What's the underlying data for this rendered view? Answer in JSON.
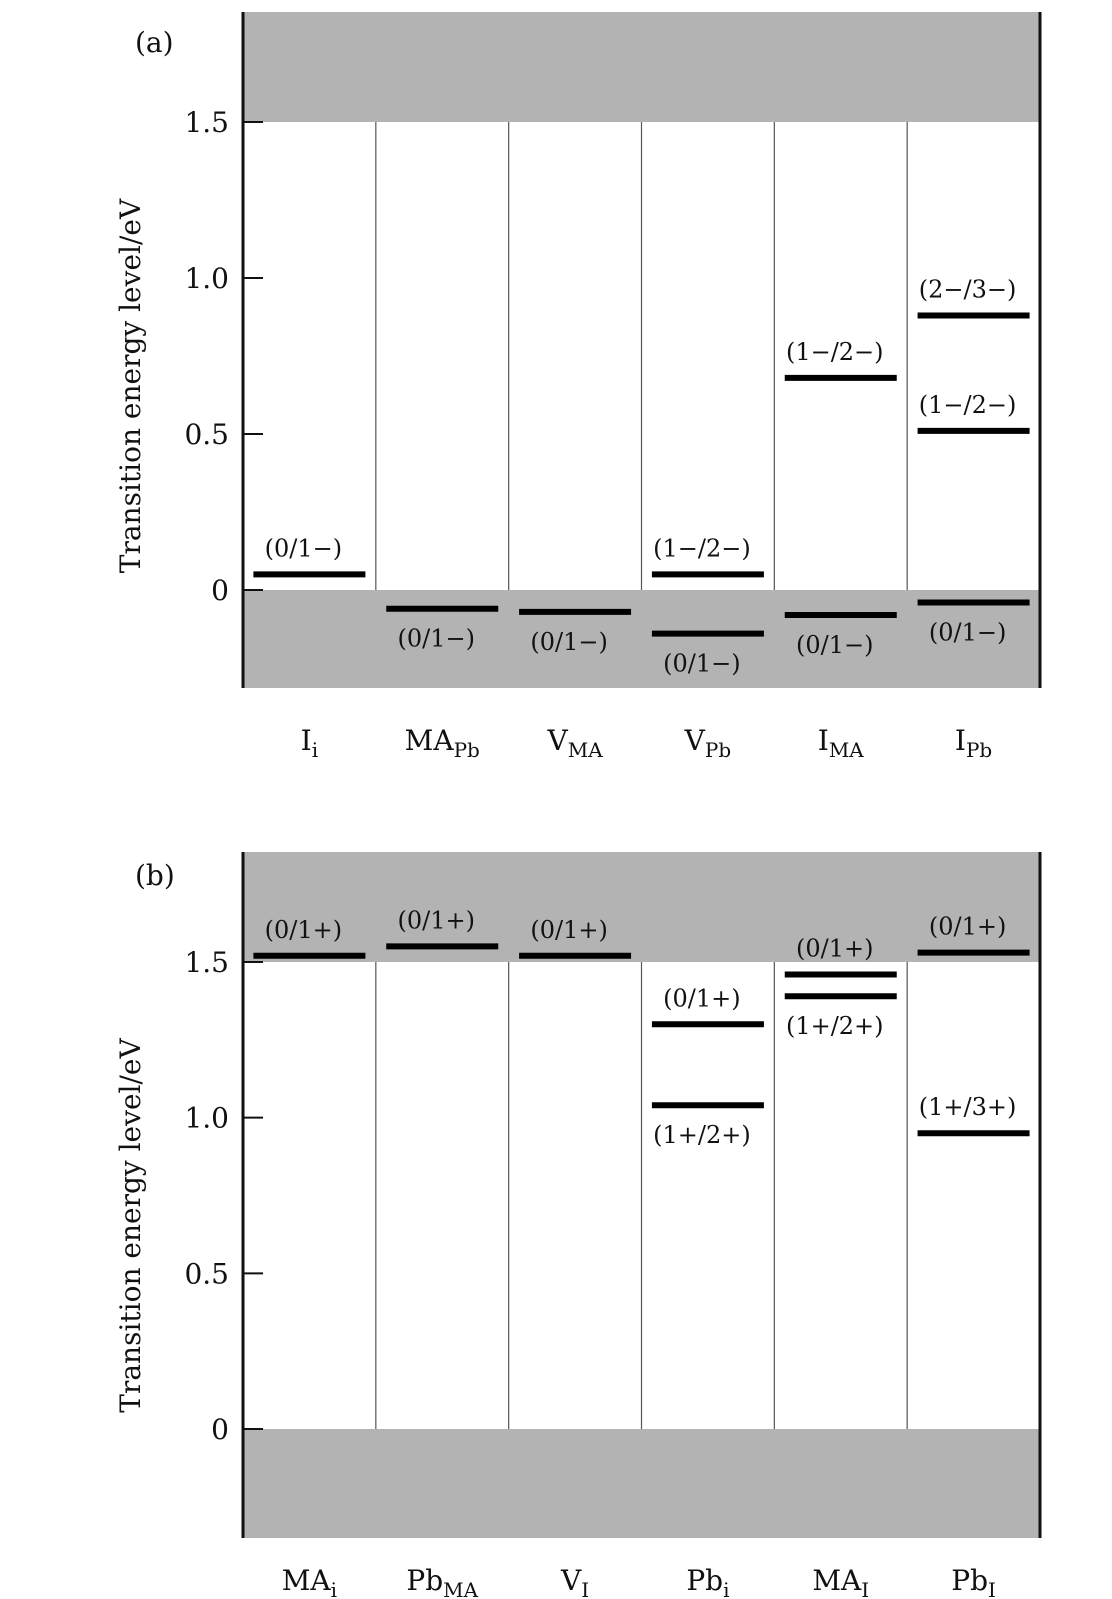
{
  "chart_data": [
    {
      "type": "energy-level-diagram",
      "panel_label": "(a)",
      "ylabel": "Transition energy level/eV",
      "yticks": [
        "0",
        "0.5",
        "1.0",
        "1.5"
      ],
      "ylim": [
        -0.36,
        1.85
      ],
      "bands": {
        "valence_top": 0,
        "conduction_bottom": 1.5,
        "color": "#b3b3b3"
      },
      "categories": [
        {
          "base": "I",
          "sub": "i"
        },
        {
          "base": "MA",
          "sub": "Pb"
        },
        {
          "base": "V",
          "sub": "MA"
        },
        {
          "base": "V",
          "sub": "Pb"
        },
        {
          "base": "I",
          "sub": "MA"
        },
        {
          "base": "I",
          "sub": "Pb"
        }
      ],
      "levels": [
        {
          "category": 0,
          "energy": 0.05,
          "label": "(0/1−)",
          "label_pos": "above"
        },
        {
          "category": 1,
          "energy": -0.06,
          "label": "(0/1−)",
          "label_pos": "below"
        },
        {
          "category": 2,
          "energy": -0.07,
          "label": "(0/1−)",
          "label_pos": "below"
        },
        {
          "category": 3,
          "energy": 0.05,
          "label": "(1−/2−)",
          "label_pos": "above"
        },
        {
          "category": 3,
          "energy": -0.14,
          "label": "(0/1−)",
          "label_pos": "below"
        },
        {
          "category": 4,
          "energy": 0.68,
          "label": "(1−/2−)",
          "label_pos": "above"
        },
        {
          "category": 4,
          "energy": -0.08,
          "label": "(0/1−)",
          "label_pos": "below"
        },
        {
          "category": 5,
          "energy": 0.88,
          "label": "(2−/3−)",
          "label_pos": "above"
        },
        {
          "category": 5,
          "energy": 0.51,
          "label": "(1−/2−)",
          "label_pos": "above"
        },
        {
          "category": 5,
          "energy": -0.04,
          "label": "(0/1−)",
          "label_pos": "below"
        }
      ]
    },
    {
      "type": "energy-level-diagram",
      "panel_label": "(b)",
      "ylabel": "Transition energy level/eV",
      "yticks": [
        "0",
        "0.5",
        "1.0",
        "1.5"
      ],
      "ylim": [
        -0.36,
        1.85
      ],
      "bands": {
        "valence_top": 0,
        "conduction_bottom": 1.5,
        "color": "#b3b3b3"
      },
      "categories": [
        {
          "base": "MA",
          "sub": "i"
        },
        {
          "base": "Pb",
          "sub": "MA"
        },
        {
          "base": "V",
          "sub": "I"
        },
        {
          "base": "Pb",
          "sub": "i"
        },
        {
          "base": "MA",
          "sub": "I"
        },
        {
          "base": "Pb",
          "sub": "I"
        }
      ],
      "levels": [
        {
          "category": 0,
          "energy": 1.52,
          "label": "(0/1+)",
          "label_pos": "above"
        },
        {
          "category": 1,
          "energy": 1.55,
          "label": "(0/1+)",
          "label_pos": "above"
        },
        {
          "category": 2,
          "energy": 1.52,
          "label": "(0/1+)",
          "label_pos": "above"
        },
        {
          "category": 3,
          "energy": 1.3,
          "label": "(0/1+)",
          "label_pos": "above"
        },
        {
          "category": 3,
          "energy": 1.04,
          "label": "(1+/2+)",
          "label_pos": "below"
        },
        {
          "category": 4,
          "energy": 1.46,
          "label": "(0/1+)",
          "label_pos": "above"
        },
        {
          "category": 4,
          "energy": 1.39,
          "label": "(1+/2+)",
          "label_pos": "below"
        },
        {
          "category": 5,
          "energy": 1.53,
          "label": "(0/1+)",
          "label_pos": "above"
        },
        {
          "category": 5,
          "energy": 0.95,
          "label": "(1+/3+)",
          "label_pos": "above"
        }
      ]
    }
  ]
}
